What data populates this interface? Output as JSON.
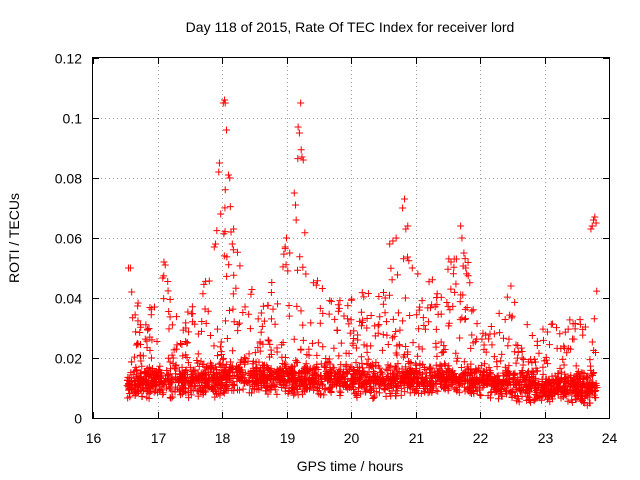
{
  "chart_data": {
    "type": "scatter",
    "title": "Day 118 of 2015, Rate Of TEC Index for receiver lord",
    "xlabel": "GPS time / hours",
    "ylabel": "ROTI / TECUs",
    "xlim": [
      16,
      24
    ],
    "ylim": [
      0,
      0.12
    ],
    "grid": true,
    "marker": "+",
    "series_color": "#ff0000",
    "x_ticks": [
      "16",
      "17",
      "18",
      "19",
      "20",
      "21",
      "22",
      "23",
      "24"
    ],
    "y_ticks": [
      "0",
      "0.02",
      "0.04",
      "0.06",
      "0.08",
      "0.1",
      "0.12"
    ],
    "time_start": 16.53,
    "time_end": 23.82,
    "baseline": [
      [
        16.5,
        0.011
      ],
      [
        17.0,
        0.012
      ],
      [
        17.5,
        0.012
      ],
      [
        18.0,
        0.013
      ],
      [
        18.5,
        0.014
      ],
      [
        19.0,
        0.013
      ],
      [
        19.5,
        0.013
      ],
      [
        20.0,
        0.012
      ],
      [
        20.5,
        0.012
      ],
      [
        21.0,
        0.013
      ],
      [
        21.5,
        0.013
      ],
      [
        22.0,
        0.012
      ],
      [
        22.5,
        0.011
      ],
      [
        23.0,
        0.01
      ],
      [
        23.5,
        0.01
      ],
      [
        23.85,
        0.01
      ]
    ],
    "envelope": [
      [
        16.5,
        0.045
      ],
      [
        16.8,
        0.035
      ],
      [
        17.0,
        0.04
      ],
      [
        17.1,
        0.052
      ],
      [
        17.3,
        0.038
      ],
      [
        17.6,
        0.038
      ],
      [
        17.9,
        0.06
      ],
      [
        18.05,
        0.105
      ],
      [
        18.2,
        0.06
      ],
      [
        18.4,
        0.045
      ],
      [
        18.6,
        0.043
      ],
      [
        18.9,
        0.055
      ],
      [
        19.05,
        0.06
      ],
      [
        19.2,
        0.105
      ],
      [
        19.35,
        0.05
      ],
      [
        19.6,
        0.042
      ],
      [
        19.9,
        0.042
      ],
      [
        20.1,
        0.044
      ],
      [
        20.3,
        0.046
      ],
      [
        20.6,
        0.058
      ],
      [
        20.85,
        0.073
      ],
      [
        21.0,
        0.05
      ],
      [
        21.2,
        0.047
      ],
      [
        21.5,
        0.053
      ],
      [
        21.75,
        0.063
      ],
      [
        21.9,
        0.04
      ],
      [
        22.2,
        0.032
      ],
      [
        22.5,
        0.044
      ],
      [
        22.8,
        0.028
      ],
      [
        23.1,
        0.032
      ],
      [
        23.4,
        0.035
      ],
      [
        23.65,
        0.033
      ],
      [
        23.75,
        0.066
      ],
      [
        23.85,
        0.04
      ]
    ],
    "spikes": [
      [
        16.55,
        0.05
      ],
      [
        16.58,
        0.05
      ],
      [
        16.6,
        0.042
      ],
      [
        17.1,
        0.052
      ],
      [
        17.12,
        0.051
      ],
      [
        17.88,
        0.057
      ],
      [
        17.9,
        0.058
      ],
      [
        17.95,
        0.082
      ],
      [
        17.96,
        0.085
      ],
      [
        17.98,
        0.068
      ],
      [
        18.02,
        0.105
      ],
      [
        18.04,
        0.106
      ],
      [
        18.05,
        0.105
      ],
      [
        18.07,
        0.096
      ],
      [
        18.1,
        0.081
      ],
      [
        18.12,
        0.08
      ],
      [
        18.14,
        0.062
      ],
      [
        18.16,
        0.058
      ],
      [
        18.18,
        0.063
      ],
      [
        18.98,
        0.057
      ],
      [
        19.0,
        0.06
      ],
      [
        19.05,
        0.055
      ],
      [
        19.12,
        0.075
      ],
      [
        19.14,
        0.071
      ],
      [
        19.15,
        0.066
      ],
      [
        19.18,
        0.097
      ],
      [
        19.2,
        0.095
      ],
      [
        19.22,
        0.105
      ],
      [
        19.24,
        0.087
      ],
      [
        19.26,
        0.086
      ],
      [
        19.3,
        0.048
      ],
      [
        20.6,
        0.058
      ],
      [
        20.65,
        0.059
      ],
      [
        20.7,
        0.06
      ],
      [
        20.8,
        0.07
      ],
      [
        20.83,
        0.073
      ],
      [
        20.85,
        0.063
      ],
      [
        20.88,
        0.064
      ],
      [
        20.95,
        0.05
      ],
      [
        21.55,
        0.052
      ],
      [
        21.6,
        0.053
      ],
      [
        21.7,
        0.064
      ],
      [
        21.72,
        0.06
      ],
      [
        21.75,
        0.055
      ],
      [
        21.78,
        0.05
      ],
      [
        22.48,
        0.044
      ],
      [
        23.72,
        0.063
      ],
      [
        23.74,
        0.064
      ],
      [
        23.76,
        0.066
      ],
      [
        23.78,
        0.067
      ],
      [
        23.8,
        0.065
      ]
    ]
  }
}
